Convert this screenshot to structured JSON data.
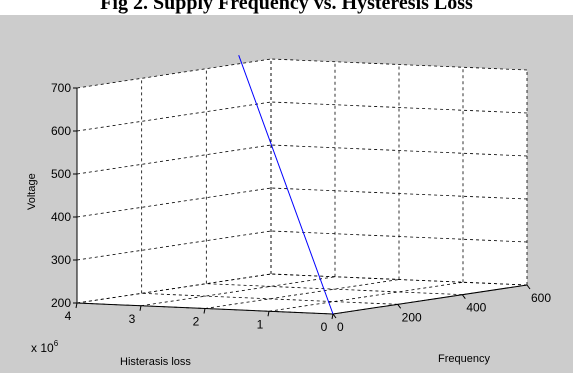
{
  "figure": {
    "caption": "Fig 2. Supply Frequency vs. Hysteresis Loss"
  },
  "chart_data": {
    "type": "line",
    "projection": "3d",
    "xlabel": "Frequency",
    "ylabel": "Histerasis loss",
    "zlabel": "Voltage",
    "y_multiplier_label": "x 10",
    "y_multiplier_exponent": "6",
    "xlim": [
      0,
      600
    ],
    "ylim": [
      0,
      4000000
    ],
    "zlim": [
      200,
      700
    ],
    "x_ticks": [
      "0",
      "200",
      "400",
      "600"
    ],
    "y_ticks": [
      "0",
      "1",
      "2",
      "3",
      "4"
    ],
    "z_ticks": [
      "200",
      "300",
      "400",
      "500",
      "600",
      "700"
    ],
    "grid": true,
    "series": [
      {
        "color": "#0000ff",
        "x": [
          0,
          500
        ],
        "y": [
          0,
          4000000
        ],
        "z": [
          200,
          720
        ]
      }
    ],
    "colors": {
      "background": "#cccccc",
      "axes_pane": "#ffffff",
      "grid": "#000000",
      "line": "#0000ff"
    }
  }
}
